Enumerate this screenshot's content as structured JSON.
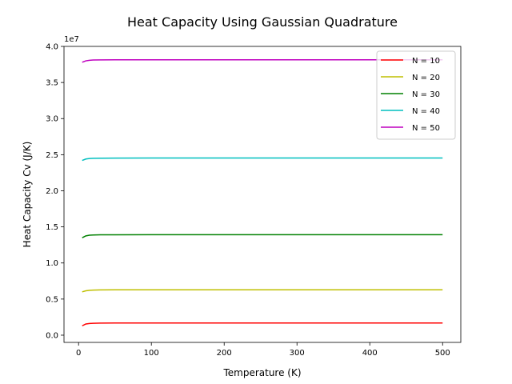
{
  "chart_data": {
    "type": "line",
    "title": "Heat Capacity Using Gaussian Quadrature",
    "xlabel": "Temperature (K)",
    "ylabel": "Heat Capacity Cv (J/K)",
    "y_offset_label": "1e7",
    "xlim": [
      -20,
      525
    ],
    "ylim": [
      -0.1,
      4.0
    ],
    "xticks": [
      0,
      100,
      200,
      300,
      400,
      500
    ],
    "xtick_labels": [
      "0",
      "100",
      "200",
      "300",
      "400",
      "500"
    ],
    "yticks": [
      0.0,
      0.5,
      1.0,
      1.5,
      2.0,
      2.5,
      3.0,
      3.5,
      4.0
    ],
    "ytick_labels": [
      "0.0",
      "0.5",
      "1.0",
      "1.5",
      "2.0",
      "2.5",
      "3.0",
      "3.5",
      "4.0"
    ],
    "y_scale_note": "values in units of 1e7 J/K",
    "grid": false,
    "legend_position": "top-right",
    "x": [
      5,
      10,
      15,
      20,
      30,
      50,
      100,
      200,
      300,
      400,
      500
    ],
    "series": [
      {
        "name": "N = 10",
        "color": "#ff0000",
        "values": [
          0.13,
          0.155,
          0.162,
          0.165,
          0.167,
          0.168,
          0.169,
          0.169,
          0.169,
          0.169,
          0.169
        ]
      },
      {
        "name": "N = 20",
        "color": "#bfbf00",
        "values": [
          0.6,
          0.615,
          0.622,
          0.625,
          0.627,
          0.628,
          0.629,
          0.629,
          0.629,
          0.629,
          0.629
        ]
      },
      {
        "name": "N = 30",
        "color": "#008000",
        "values": [
          1.35,
          1.375,
          1.385,
          1.388,
          1.39,
          1.391,
          1.392,
          1.392,
          1.392,
          1.392,
          1.392
        ]
      },
      {
        "name": "N = 40",
        "color": "#00bfbf",
        "values": [
          2.42,
          2.44,
          2.447,
          2.45,
          2.452,
          2.453,
          2.454,
          2.454,
          2.454,
          2.454,
          2.454
        ]
      },
      {
        "name": "N = 50",
        "color": "#bf00bf",
        "values": [
          3.78,
          3.8,
          3.808,
          3.811,
          3.813,
          3.814,
          3.815,
          3.815,
          3.815,
          3.815,
          3.815
        ]
      }
    ]
  }
}
